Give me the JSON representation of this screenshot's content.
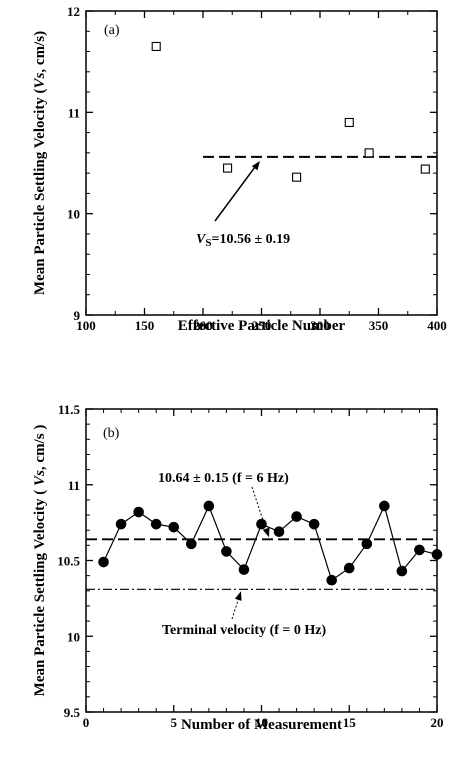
{
  "chart_data": [
    {
      "type": "scatter",
      "panel_label": "(a)",
      "xlabel": "Effective Particle Number",
      "ylabel_parts": [
        "Mean Particle Settling Velocity (",
        "Vs",
        ", cm/s)"
      ],
      "xlim": [
        100,
        400
      ],
      "ylim": [
        9,
        12
      ],
      "xticks": [
        100,
        150,
        200,
        250,
        300,
        350,
        400
      ],
      "yticks": [
        9,
        10,
        11,
        12
      ],
      "points": [
        {
          "x": 160,
          "y": 11.65
        },
        {
          "x": 221,
          "y": 10.45
        },
        {
          "x": 280,
          "y": 10.36
        },
        {
          "x": 325,
          "y": 10.9
        },
        {
          "x": 342,
          "y": 10.6
        },
        {
          "x": 390,
          "y": 10.44
        }
      ],
      "mean_line": {
        "y": 10.56,
        "x_start": 200,
        "x_end": 400,
        "style": "dashed"
      },
      "annotation": {
        "symbol": "V",
        "subscript": "S",
        "text": "=10.56 ± 0.19"
      }
    },
    {
      "type": "line",
      "panel_label": "(b)",
      "xlabel": "Number of Measurement",
      "ylabel_parts": [
        "Mean Particle Settling Velocity ( ",
        "Vs",
        ", cm/s )"
      ],
      "xlim": [
        0,
        20
      ],
      "ylim": [
        9.5,
        11.5
      ],
      "xticks": [
        0,
        5,
        10,
        15,
        20
      ],
      "yticks": [
        9.5,
        10,
        10.5,
        11,
        11.5
      ],
      "x": [
        1,
        2,
        3,
        4,
        5,
        6,
        7,
        8,
        9,
        10,
        11,
        12,
        13,
        14,
        15,
        16,
        17,
        18,
        19,
        20
      ],
      "values": [
        10.49,
        10.74,
        10.82,
        10.74,
        10.72,
        10.61,
        10.86,
        10.56,
        10.44,
        10.74,
        10.69,
        10.79,
        10.74,
        10.37,
        10.45,
        10.61,
        10.86,
        10.43,
        10.57,
        10.54
      ],
      "reference_lines": [
        {
          "y": 10.64,
          "style": "dashed",
          "label": "10.64 ± 0.15  (f = 6 Hz)"
        },
        {
          "y": 10.31,
          "style": "dashdot",
          "label": "Terminal velocity (f = 0 Hz)"
        }
      ]
    }
  ]
}
